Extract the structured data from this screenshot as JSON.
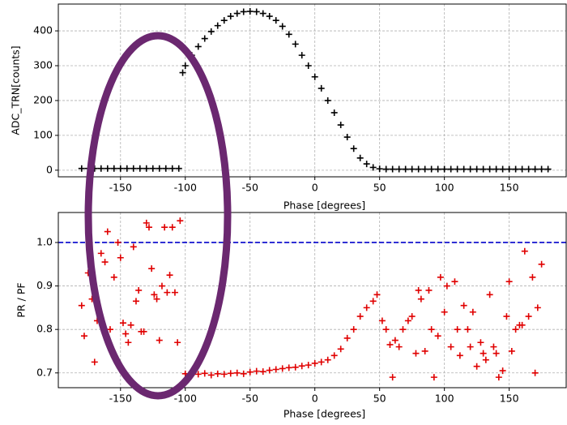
{
  "chart_data": [
    {
      "type": "scatter",
      "marker": "+",
      "color": "#000000",
      "grid": true,
      "xlabel": "Phase [degrees]",
      "ylabel": "ADC_TRN[counts]",
      "xlim": [
        -198,
        194
      ],
      "ylim": [
        -19,
        477
      ],
      "xticks": [
        -150,
        -100,
        -50,
        0,
        50,
        100,
        150
      ],
      "yticks": [
        0,
        100,
        200,
        300,
        400
      ],
      "x": [
        -180,
        -175,
        -170,
        -165,
        -160,
        -155,
        -150,
        -145,
        -140,
        -135,
        -130,
        -125,
        -120,
        -115,
        -110,
        -105,
        -102,
        -100,
        -95,
        -90,
        -85,
        -80,
        -75,
        -70,
        -65,
        -60,
        -55,
        -50,
        -45,
        -40,
        -35,
        -30,
        -25,
        -20,
        -15,
        -10,
        -5,
        0,
        5,
        10,
        15,
        20,
        25,
        30,
        35,
        40,
        45,
        50,
        55,
        60,
        65,
        70,
        75,
        80,
        85,
        90,
        95,
        100,
        105,
        110,
        115,
        120,
        125,
        130,
        135,
        140,
        145,
        150,
        155,
        160,
        165,
        170,
        175,
        180
      ],
      "values": [
        5,
        5,
        5,
        5,
        5,
        5,
        5,
        5,
        5,
        5,
        5,
        5,
        5,
        5,
        5,
        5,
        280,
        300,
        330,
        355,
        378,
        398,
        415,
        430,
        442,
        450,
        455,
        456,
        455,
        450,
        442,
        430,
        413,
        390,
        362,
        330,
        300,
        268,
        235,
        200,
        165,
        130,
        95,
        62,
        35,
        18,
        8,
        4,
        3,
        3,
        3,
        3,
        3,
        3,
        3,
        3,
        3,
        3,
        3,
        3,
        3,
        3,
        3,
        3,
        3,
        3,
        3,
        3,
        3,
        3,
        3,
        3,
        3,
        3
      ]
    },
    {
      "type": "scatter",
      "marker": "+",
      "color": "#e00000",
      "grid": true,
      "xlabel": "Phase [degrees]",
      "ylabel": "PR / PF",
      "xlim": [
        -198,
        194
      ],
      "ylim": [
        0.666,
        1.069
      ],
      "xticks": [
        -150,
        -100,
        -50,
        0,
        50,
        100,
        150
      ],
      "yticks": [
        0.7,
        0.8,
        0.9,
        {
          "value": 1,
          "label": "1.0"
        }
      ],
      "hline": {
        "value": 1,
        "color": "#0000cc"
      },
      "x": [
        -180,
        -178,
        -175,
        -172,
        -170,
        -168,
        -165,
        -162,
        -160,
        -158,
        -155,
        -152,
        -150,
        -148,
        -146,
        -144,
        -142,
        -140,
        -138,
        -136,
        -134,
        -132,
        -130,
        -128,
        -126,
        -124,
        -122,
        -120,
        -118,
        -116,
        -114,
        -112,
        -110,
        -108,
        -106,
        -104,
        -100,
        -95,
        -90,
        -85,
        -80,
        -75,
        -70,
        -65,
        -60,
        -55,
        -50,
        -45,
        -40,
        -35,
        -30,
        -25,
        -20,
        -15,
        -10,
        -5,
        0,
        5,
        10,
        15,
        20,
        25,
        30,
        35,
        40,
        45,
        48,
        52,
        55,
        58,
        60,
        62,
        65,
        68,
        72,
        75,
        78,
        80,
        82,
        85,
        88,
        90,
        92,
        95,
        97,
        100,
        102,
        105,
        108,
        110,
        112,
        115,
        118,
        120,
        122,
        125,
        128,
        130,
        132,
        135,
        138,
        140,
        142,
        145,
        148,
        150,
        152,
        155,
        158,
        160,
        162,
        165,
        168,
        170,
        172,
        175
      ],
      "values": [
        0.855,
        0.785,
        0.93,
        0.87,
        0.725,
        0.82,
        0.975,
        0.955,
        1.025,
        0.8,
        0.92,
        1.0,
        0.965,
        0.815,
        0.79,
        0.77,
        0.81,
        0.99,
        0.865,
        0.89,
        0.795,
        0.795,
        1.045,
        1.035,
        0.94,
        0.88,
        0.87,
        0.775,
        0.9,
        1.035,
        0.885,
        0.925,
        1.035,
        0.885,
        0.77,
        1.05,
        0.698,
        0.7,
        0.697,
        0.699,
        0.695,
        0.698,
        0.697,
        0.699,
        0.7,
        0.698,
        0.702,
        0.704,
        0.703,
        0.706,
        0.708,
        0.71,
        0.712,
        0.713,
        0.716,
        0.718,
        0.722,
        0.725,
        0.73,
        0.74,
        0.755,
        0.78,
        0.8,
        0.83,
        0.85,
        0.865,
        0.88,
        0.82,
        0.8,
        0.765,
        0.69,
        0.775,
        0.76,
        0.8,
        0.82,
        0.83,
        0.745,
        0.89,
        0.87,
        0.75,
        0.89,
        0.8,
        0.69,
        0.785,
        0.92,
        0.84,
        0.9,
        0.76,
        0.91,
        0.8,
        0.74,
        0.855,
        0.8,
        0.76,
        0.84,
        0.715,
        0.77,
        0.745,
        0.73,
        0.88,
        0.76,
        0.745,
        0.69,
        0.705,
        0.83,
        0.91,
        0.75,
        0.8,
        0.81,
        0.81,
        0.98,
        0.83,
        0.92,
        0.7,
        0.85,
        0.95
      ]
    }
  ]
}
